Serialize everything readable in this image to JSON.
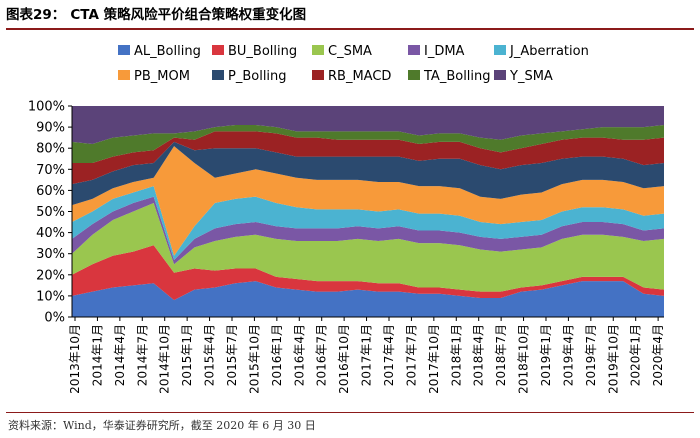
{
  "header": {
    "figure_label": "图表29：",
    "title": "CTA 策略风险平价组合策略权重变化图"
  },
  "footer": {
    "source": "资料来源：Wind，华泰证券研究所，截至 2020 年 6 月 30 日"
  },
  "chart_data": {
    "type": "area",
    "stacked": true,
    "title": "CTA 策略风险平价组合策略权重变化图",
    "ylim": [
      0,
      100
    ],
    "ytick_labels": [
      "0%",
      "10%",
      "20%",
      "30%",
      "40%",
      "50%",
      "60%",
      "70%",
      "80%",
      "90%",
      "100%"
    ],
    "xtick_labels": [
      "2013年10月",
      "2014年1月",
      "2014年4月",
      "2014年7月",
      "2014年10月",
      "2015年1月",
      "2015年4月",
      "2015年7月",
      "2015年10月",
      "2016年1月",
      "2016年4月",
      "2016年7月",
      "2016年10月",
      "2017年1月",
      "2017年4月",
      "2017年7月",
      "2017年10月",
      "2018年1月",
      "2018年4月",
      "2018年7月",
      "2018年10月",
      "2019年1月",
      "2019年4月",
      "2019年7月",
      "2019年10月",
      "2020年1月",
      "2020年4月"
    ],
    "legend_position": "top",
    "x": [
      "2013-10",
      "2014-01",
      "2014-04",
      "2014-07",
      "2014-10",
      "2014-11",
      "2014-12",
      "2015-01",
      "2015-04",
      "2015-07",
      "2015-10",
      "2016-01",
      "2016-04",
      "2016-07",
      "2016-10",
      "2017-01",
      "2017-04",
      "2017-07",
      "2017-10",
      "2018-01",
      "2018-04",
      "2018-07",
      "2018-10",
      "2019-01",
      "2019-04",
      "2019-07",
      "2019-10",
      "2020-01",
      "2020-04",
      "2020-06"
    ],
    "series": [
      {
        "name": "AL_Bolling",
        "color": "#4472c4",
        "values": [
          10,
          12,
          14,
          15,
          16,
          8,
          13,
          14,
          16,
          17,
          14,
          13,
          12,
          12,
          13,
          12,
          12,
          11,
          11,
          10,
          9,
          9,
          12,
          13,
          15,
          17,
          17,
          17,
          11,
          10
        ]
      },
      {
        "name": "BU_Bolling",
        "color": "#d9363e",
        "values": [
          10,
          13,
          15,
          16,
          18,
          13,
          10,
          8,
          7,
          6,
          5,
          5,
          5,
          5,
          4,
          4,
          4,
          3,
          3,
          3,
          3,
          3,
          2,
          2,
          2,
          2,
          2,
          2,
          3,
          3
        ]
      },
      {
        "name": "C_SMA",
        "color": "#9ac64f",
        "values": [
          10,
          14,
          17,
          19,
          20,
          4,
          10,
          14,
          15,
          16,
          18,
          18,
          19,
          19,
          20,
          20,
          21,
          21,
          21,
          21,
          20,
          19,
          18,
          18,
          20,
          20,
          20,
          19,
          22,
          24
        ]
      },
      {
        "name": "I_DMA",
        "color": "#7a57a5",
        "values": [
          7,
          5,
          4,
          4,
          3,
          2,
          4,
          6,
          6,
          6,
          6,
          6,
          6,
          6,
          6,
          6,
          6,
          6,
          6,
          6,
          6,
          6,
          6,
          6,
          6,
          6,
          6,
          6,
          5,
          5
        ]
      },
      {
        "name": "J_Aberration",
        "color": "#4bb3d1",
        "values": [
          8,
          6,
          6,
          5,
          5,
          2,
          6,
          12,
          12,
          12,
          11,
          10,
          9,
          9,
          8,
          8,
          8,
          8,
          8,
          8,
          7,
          7,
          7,
          7,
          7,
          7,
          7,
          7,
          7,
          7
        ]
      },
      {
        "name": "PB_MOM",
        "color": "#f79a3a",
        "values": [
          8,
          6,
          5,
          5,
          4,
          52,
          30,
          12,
          12,
          13,
          14,
          14,
          14,
          14,
          14,
          14,
          13,
          13,
          13,
          13,
          12,
          12,
          13,
          13,
          13,
          13,
          13,
          13,
          13,
          13
        ]
      },
      {
        "name": "P_Bolling",
        "color": "#2b4a6f",
        "values": [
          10,
          9,
          8,
          8,
          7,
          2,
          6,
          14,
          12,
          10,
          10,
          10,
          11,
          11,
          11,
          12,
          12,
          12,
          13,
          14,
          15,
          14,
          14,
          14,
          12,
          11,
          11,
          11,
          11,
          11
        ]
      },
      {
        "name": "RB_MACD",
        "color": "#9b2223",
        "values": [
          10,
          8,
          7,
          6,
          6,
          2,
          5,
          8,
          8,
          8,
          9,
          9,
          9,
          8,
          8,
          8,
          8,
          8,
          8,
          8,
          8,
          8,
          8,
          9,
          9,
          9,
          9,
          9,
          12,
          12
        ]
      },
      {
        "name": "TA_Bolling",
        "color": "#4f7a2b",
        "values": [
          10,
          9,
          9,
          8,
          8,
          2,
          4,
          2,
          3,
          3,
          3,
          3,
          3,
          4,
          4,
          4,
          4,
          4,
          4,
          4,
          5,
          6,
          6,
          5,
          4,
          4,
          5,
          6,
          6,
          6
        ]
      },
      {
        "name": "Y_SMA",
        "color": "#5b4379",
        "values": [
          17,
          18,
          15,
          14,
          13,
          13,
          12,
          10,
          9,
          9,
          10,
          12,
          12,
          12,
          12,
          12,
          12,
          14,
          13,
          13,
          15,
          16,
          14,
          13,
          12,
          11,
          10,
          10,
          10,
          9
        ]
      }
    ]
  }
}
